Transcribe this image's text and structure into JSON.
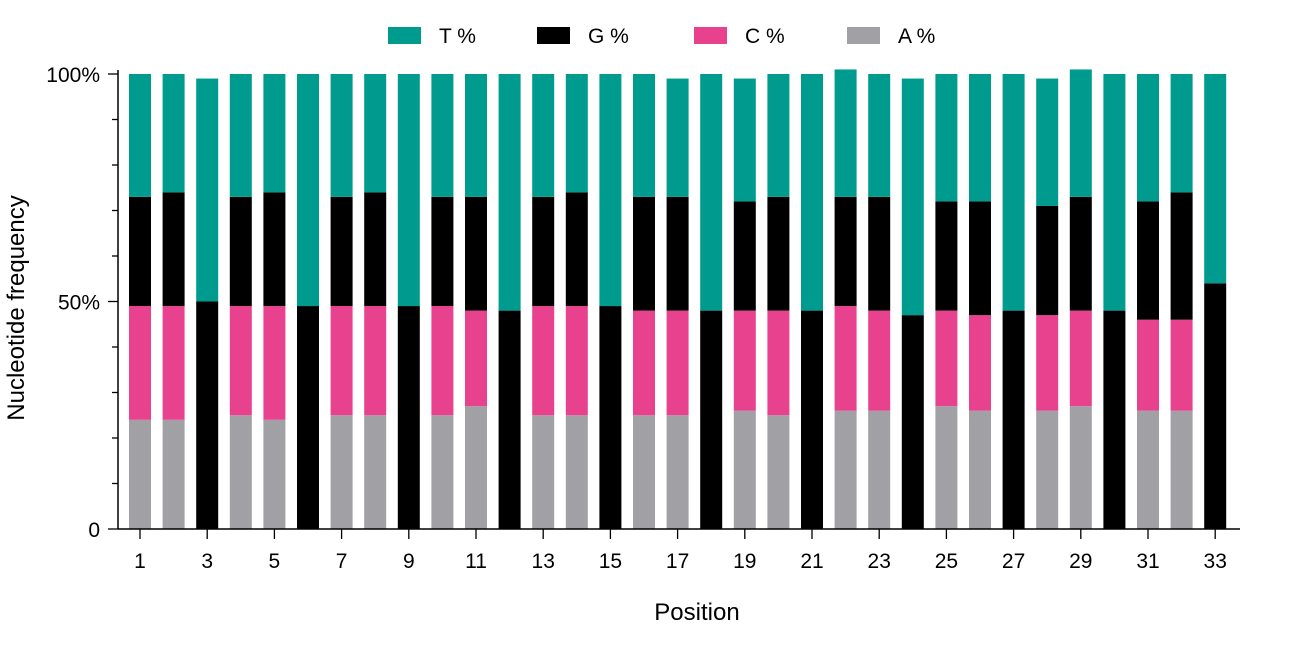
{
  "chart_data": {
    "type": "bar",
    "stacked": true,
    "xlabel": "Position",
    "ylabel": "Nucleotide frequency",
    "ylim": [
      0,
      100
    ],
    "yticks": [
      "0",
      "50%",
      "100%"
    ],
    "xtick_labels": [
      "1",
      "3",
      "5",
      "7",
      "9",
      "11",
      "13",
      "15",
      "17",
      "19",
      "21",
      "23",
      "25",
      "27",
      "29",
      "31",
      "33"
    ],
    "legend_position": "top",
    "categories": [
      1,
      2,
      3,
      4,
      5,
      6,
      7,
      8,
      9,
      10,
      11,
      12,
      13,
      14,
      15,
      16,
      17,
      18,
      19,
      20,
      21,
      22,
      23,
      24,
      25,
      26,
      27,
      28,
      29,
      30,
      31,
      32,
      33
    ],
    "series": [
      {
        "name": "A %",
        "color": "#A1A0A5",
        "values": [
          24,
          24,
          0,
          25,
          24,
          0,
          25,
          25,
          0,
          25,
          27,
          0,
          25,
          25,
          0,
          25,
          25,
          0,
          26,
          25,
          0,
          26,
          26,
          0,
          27,
          26,
          0,
          26,
          27,
          0,
          26,
          26,
          0
        ]
      },
      {
        "name": "C %",
        "color": "#E8428F",
        "values": [
          25,
          25,
          0,
          24,
          25,
          0,
          24,
          24,
          0,
          24,
          21,
          0,
          24,
          24,
          0,
          23,
          23,
          0,
          22,
          23,
          0,
          23,
          22,
          0,
          21,
          21,
          0,
          21,
          21,
          0,
          20,
          20,
          0
        ]
      },
      {
        "name": "G %",
        "color": "#000000",
        "values": [
          24,
          25,
          50,
          24,
          25,
          49,
          24,
          25,
          49,
          24,
          25,
          48,
          24,
          25,
          49,
          25,
          25,
          48,
          24,
          25,
          48,
          24,
          25,
          47,
          24,
          25,
          48,
          24,
          25,
          48,
          26,
          28,
          54
        ]
      },
      {
        "name": "T %",
        "color": "#009B8F",
        "values": [
          27,
          26,
          49,
          27,
          26,
          51,
          27,
          26,
          51,
          27,
          27,
          52,
          27,
          26,
          51,
          27,
          26,
          52,
          27,
          27,
          52,
          28,
          27,
          52,
          28,
          28,
          52,
          28,
          28,
          52,
          28,
          26,
          46
        ]
      }
    ],
    "legend_order": [
      "T %",
      "G %",
      "C %",
      "A %"
    ]
  }
}
